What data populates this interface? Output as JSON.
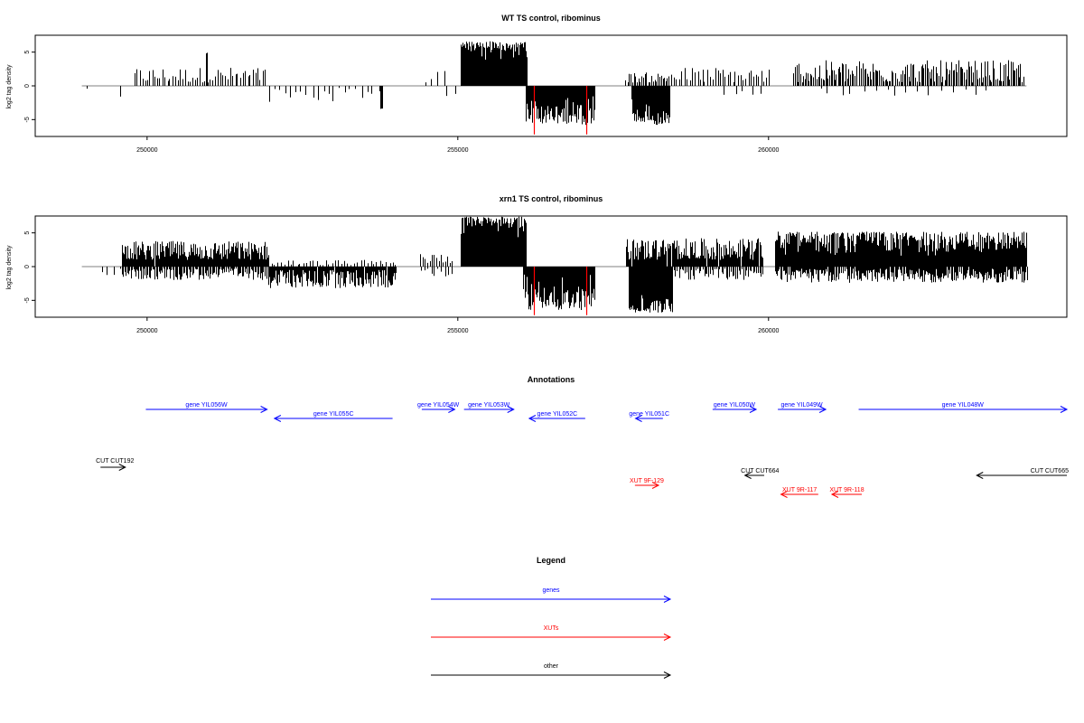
{
  "chart_data": [
    {
      "type": "bar",
      "title": "WT TS control, ribominus",
      "ylabel": "log2 tag density",
      "xlim": [
        248200,
        264800
      ],
      "ylim": [
        -7.5,
        7.5
      ],
      "yticks": [
        -5,
        0,
        5
      ],
      "xticks": [
        250000,
        255000,
        260000
      ],
      "xtick_labels": [
        "250000",
        "255000",
        "260000"
      ],
      "colors": {
        "default": "#000000",
        "highlight": "#ff0000",
        "baseline": "#808080"
      },
      "regions": [
        {
          "x": [
            249000,
            249550
          ],
          "mag": [
            0.1,
            1.6
          ],
          "density": 0.004,
          "sign": "neg"
        },
        {
          "x": [
            249800,
            251900
          ],
          "mag": [
            0.5,
            2.8
          ],
          "density": 0.025,
          "sign": "pos"
        },
        {
          "x": [
            250950,
            250960
          ],
          "mag": [
            4.5,
            4.9
          ],
          "density": 1.0,
          "sign": "pos"
        },
        {
          "x": [
            251950,
            253800
          ],
          "mag": [
            0.3,
            2.6
          ],
          "density": 0.012,
          "sign": "neg"
        },
        {
          "x": [
            253750,
            253780
          ],
          "mag": [
            3.0,
            3.4
          ],
          "density": 0.7,
          "sign": "neg"
        },
        {
          "x": [
            254450,
            254800
          ],
          "mag": [
            0.5,
            2.3
          ],
          "density": 0.01,
          "sign": "pos"
        },
        {
          "x": [
            254800,
            254950
          ],
          "mag": [
            1.0,
            1.5
          ],
          "density": 0.01,
          "sign": "neg"
        },
        {
          "x": [
            255050,
            256100
          ],
          "mag": [
            3.0,
            6.6
          ],
          "density": 0.35,
          "sign": "pos"
        },
        {
          "x": [
            256100,
            257200
          ],
          "mag": [
            1.0,
            5.8
          ],
          "density": 0.18,
          "sign": "neg"
        },
        {
          "x": [
            257800,
            258400
          ],
          "mag": [
            1.5,
            5.8
          ],
          "density": 0.3,
          "sign": "neg"
        },
        {
          "x": [
            257700,
            258400
          ],
          "mag": [
            0.5,
            2.0
          ],
          "density": 0.04,
          "sign": "pos"
        },
        {
          "x": [
            258400,
            260000
          ],
          "mag": [
            0.5,
            2.8
          ],
          "density": 0.025,
          "sign": "pos"
        },
        {
          "x": [
            259300,
            259900
          ],
          "mag": [
            0.3,
            1.5
          ],
          "density": 0.008,
          "sign": "neg"
        },
        {
          "x": [
            260400,
            264100
          ],
          "mag": [
            0.5,
            3.8
          ],
          "density": 0.045,
          "sign": "pos"
        },
        {
          "x": [
            260800,
            263500
          ],
          "mag": [
            0.3,
            1.5
          ],
          "density": 0.006,
          "sign": "neg"
        }
      ],
      "red_spikes": [
        {
          "x": 256220,
          "value": -7.2
        },
        {
          "x": 257060,
          "value": -7.2
        }
      ]
    },
    {
      "type": "bar",
      "title": "xrn1 TS control, ribominus",
      "ylabel": "log2 tag density",
      "xlim": [
        248200,
        264800
      ],
      "ylim": [
        -7.5,
        7.5
      ],
      "yticks": [
        -5,
        0,
        5
      ],
      "xticks": [
        250000,
        255000,
        260000
      ],
      "xtick_labels": [
        "250000",
        "255000",
        "260000"
      ],
      "colors": {
        "default": "#000000",
        "highlight": "#ff0000",
        "baseline": "#808080"
      },
      "regions": [
        {
          "x": [
            249250,
            249800
          ],
          "mag": [
            0.3,
            2.5
          ],
          "density": 0.01,
          "sign": "neg"
        },
        {
          "x": [
            249600,
            251950
          ],
          "mag": [
            1.0,
            3.8
          ],
          "density": 0.09,
          "sign": "pos"
        },
        {
          "x": [
            249600,
            251950
          ],
          "mag": [
            0.3,
            2.0
          ],
          "density": 0.05,
          "sign": "neg"
        },
        {
          "x": [
            251950,
            254000
          ],
          "mag": [
            0.5,
            3.2
          ],
          "density": 0.08,
          "sign": "neg"
        },
        {
          "x": [
            251950,
            254000
          ],
          "mag": [
            0.2,
            1.0
          ],
          "density": 0.02,
          "sign": "pos"
        },
        {
          "x": [
            254400,
            254900
          ],
          "mag": [
            0.5,
            2.0
          ],
          "density": 0.03,
          "sign": "pos"
        },
        {
          "x": [
            254400,
            254900
          ],
          "mag": [
            0.3,
            1.5
          ],
          "density": 0.02,
          "sign": "neg"
        },
        {
          "x": [
            255050,
            256100
          ],
          "mag": [
            3.5,
            7.4
          ],
          "density": 0.4,
          "sign": "pos"
        },
        {
          "x": [
            256050,
            257200
          ],
          "mag": [
            1.0,
            6.5
          ],
          "density": 0.2,
          "sign": "neg"
        },
        {
          "x": [
            257750,
            258450
          ],
          "mag": [
            2.0,
            6.8
          ],
          "density": 0.35,
          "sign": "neg"
        },
        {
          "x": [
            257700,
            259900
          ],
          "mag": [
            1.0,
            4.2
          ],
          "density": 0.08,
          "sign": "pos"
        },
        {
          "x": [
            258400,
            259900
          ],
          "mag": [
            0.3,
            2.0
          ],
          "density": 0.04,
          "sign": "neg"
        },
        {
          "x": [
            260100,
            264150
          ],
          "mag": [
            1.5,
            5.2
          ],
          "density": 0.18,
          "sign": "pos"
        },
        {
          "x": [
            260100,
            264150
          ],
          "mag": [
            0.3,
            2.4
          ],
          "density": 0.07,
          "sign": "neg"
        }
      ],
      "red_spikes": [
        {
          "x": 256220,
          "value": -7.2
        },
        {
          "x": 257060,
          "value": -7.2
        }
      ]
    }
  ],
  "annotations": {
    "title": "Annotations",
    "xlim": [
      248200,
      264800
    ],
    "items": [
      {
        "label": "gene YIL056W",
        "start": 249980,
        "end": 251930,
        "dir": "right",
        "color": "#0000ff",
        "row": 0
      },
      {
        "label": "gene YIL055C",
        "start": 252050,
        "end": 253950,
        "dir": "left",
        "color": "#0000ff",
        "row": 1
      },
      {
        "label": "gene YIL054W",
        "start": 254420,
        "end": 254950,
        "dir": "right",
        "color": "#0000ff",
        "row": 0
      },
      {
        "label": "gene YIL053W",
        "start": 255100,
        "end": 255900,
        "dir": "right",
        "color": "#0000ff",
        "row": 0
      },
      {
        "label": "gene YIL052C",
        "start": 256150,
        "end": 257050,
        "dir": "left",
        "color": "#0000ff",
        "row": 1
      },
      {
        "label": "gene YIL051C",
        "start": 257860,
        "end": 258300,
        "dir": "left",
        "color": "#0000ff",
        "row": 1
      },
      {
        "label": "gene YIL050W",
        "start": 259100,
        "end": 259800,
        "dir": "right",
        "color": "#0000ff",
        "row": 0
      },
      {
        "label": "gene YIL049W",
        "start": 260150,
        "end": 260920,
        "dir": "right",
        "color": "#0000ff",
        "row": 0
      },
      {
        "label": "gene YIL048W",
        "start": 261450,
        "end": 264800,
        "dir": "right",
        "color": "#0000ff",
        "row": 0
      },
      {
        "label": "CUT CUT192",
        "start": 249250,
        "end": 249650,
        "dir": "right",
        "color": "#000000",
        "row": 3,
        "label_side": "left"
      },
      {
        "label": "CUT CUT664",
        "start": 259620,
        "end": 259930,
        "dir": "left",
        "color": "#000000",
        "row": 4,
        "label_side": "center"
      },
      {
        "label": "CUT CUT665",
        "start": 263350,
        "end": 264800,
        "dir": "left",
        "color": "#000000",
        "row": 4,
        "label_side": "right"
      },
      {
        "label": "XUT 9F-129",
        "start": 257850,
        "end": 258230,
        "dir": "right",
        "color": "#ff0000",
        "row": 5
      },
      {
        "label": "XUT 9R-117",
        "start": 260200,
        "end": 260800,
        "dir": "left",
        "color": "#ff0000",
        "row": 6
      },
      {
        "label": "XUT 9R-118",
        "start": 261020,
        "end": 261500,
        "dir": "left",
        "color": "#ff0000",
        "row": 6
      }
    ]
  },
  "legend": {
    "title": "Legend",
    "items": [
      {
        "label": "genes",
        "color": "#0000ff"
      },
      {
        "label": "XUTs",
        "color": "#ff0000"
      },
      {
        "label": "other",
        "color": "#000000"
      }
    ]
  }
}
